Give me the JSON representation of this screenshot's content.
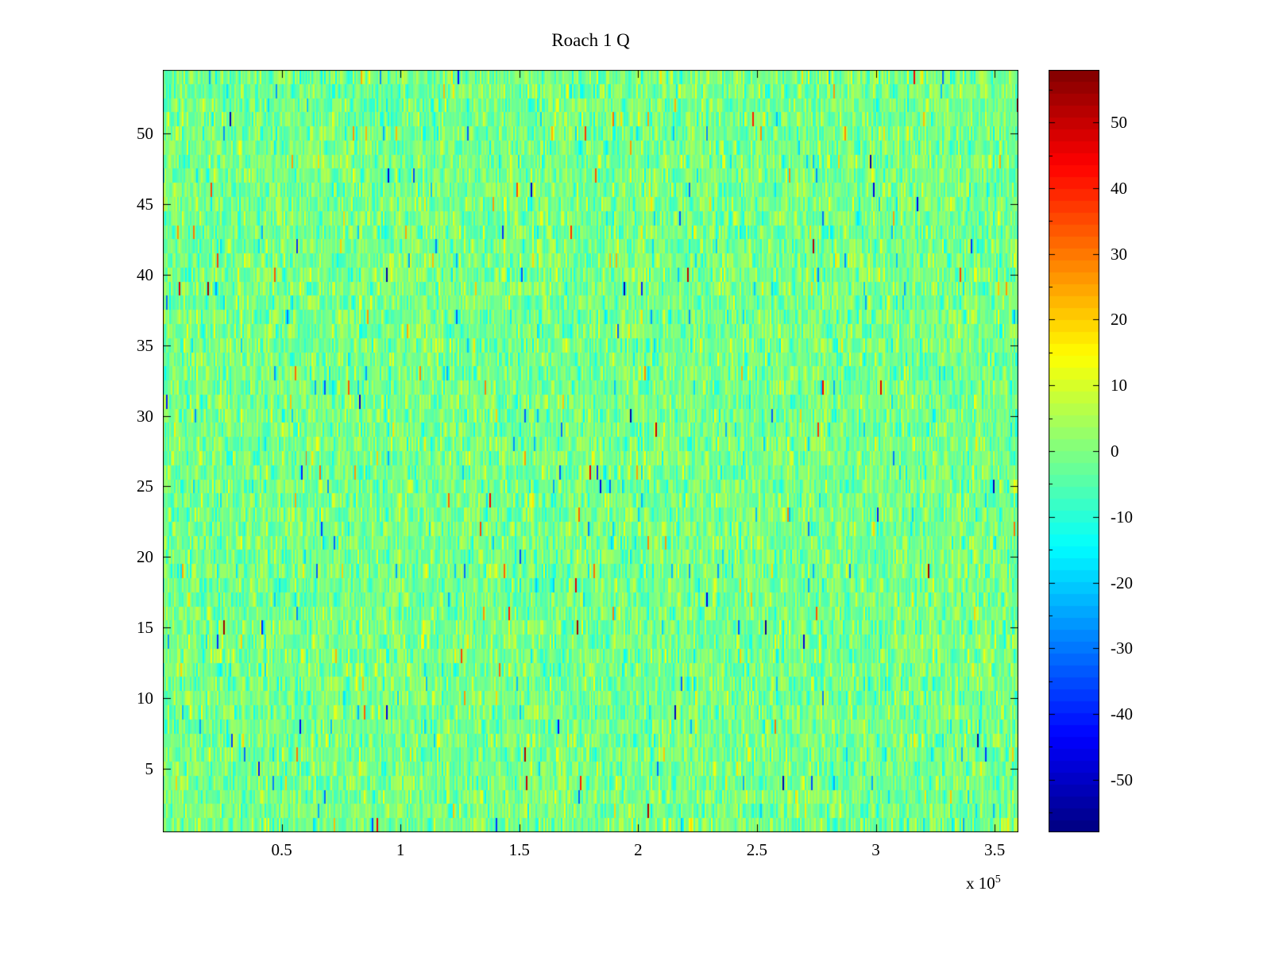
{
  "chart_data": {
    "type": "heatmap",
    "title": "Roach 1 Q",
    "xlabel": "",
    "ylabel": "",
    "x_range": [
      0,
      360000
    ],
    "x_ticks": [
      50000,
      100000,
      150000,
      200000,
      250000,
      300000,
      350000
    ],
    "x_tick_labels": [
      "0.5",
      "1",
      "1.5",
      "2",
      "2.5",
      "3",
      "3.5"
    ],
    "x_exponent": {
      "base": "x 10",
      "exp": "5"
    },
    "y_range": [
      0.5,
      54.5
    ],
    "y_ticks": [
      5,
      10,
      15,
      20,
      25,
      30,
      35,
      40,
      45,
      50
    ],
    "rows": 54,
    "cols": 540,
    "colormap": "jet",
    "colormap_levels": 64,
    "clim": [
      -58,
      58
    ],
    "colorbar_ticks": [
      -50,
      -40,
      -30,
      -20,
      -10,
      0,
      10,
      20,
      30,
      40,
      50
    ],
    "data_description": "Dense random noise heatmap: values centered near 0 (light green on jet colormap), typical spread about ±10, frequent small cyan/yellow speckles around ±10 to ±20, sparse outliers reaching about ±55 (red/orange and deep blue specks).",
    "noise": {
      "mean": -1,
      "std": 5.5,
      "speckle_prob": 0.018,
      "outlier_prob": 0.0035,
      "seed": 1337
    },
    "colors": {
      "background": "#ffffff",
      "axis": "#000000"
    },
    "grid": false,
    "legend": "none (colorbar on right)"
  }
}
